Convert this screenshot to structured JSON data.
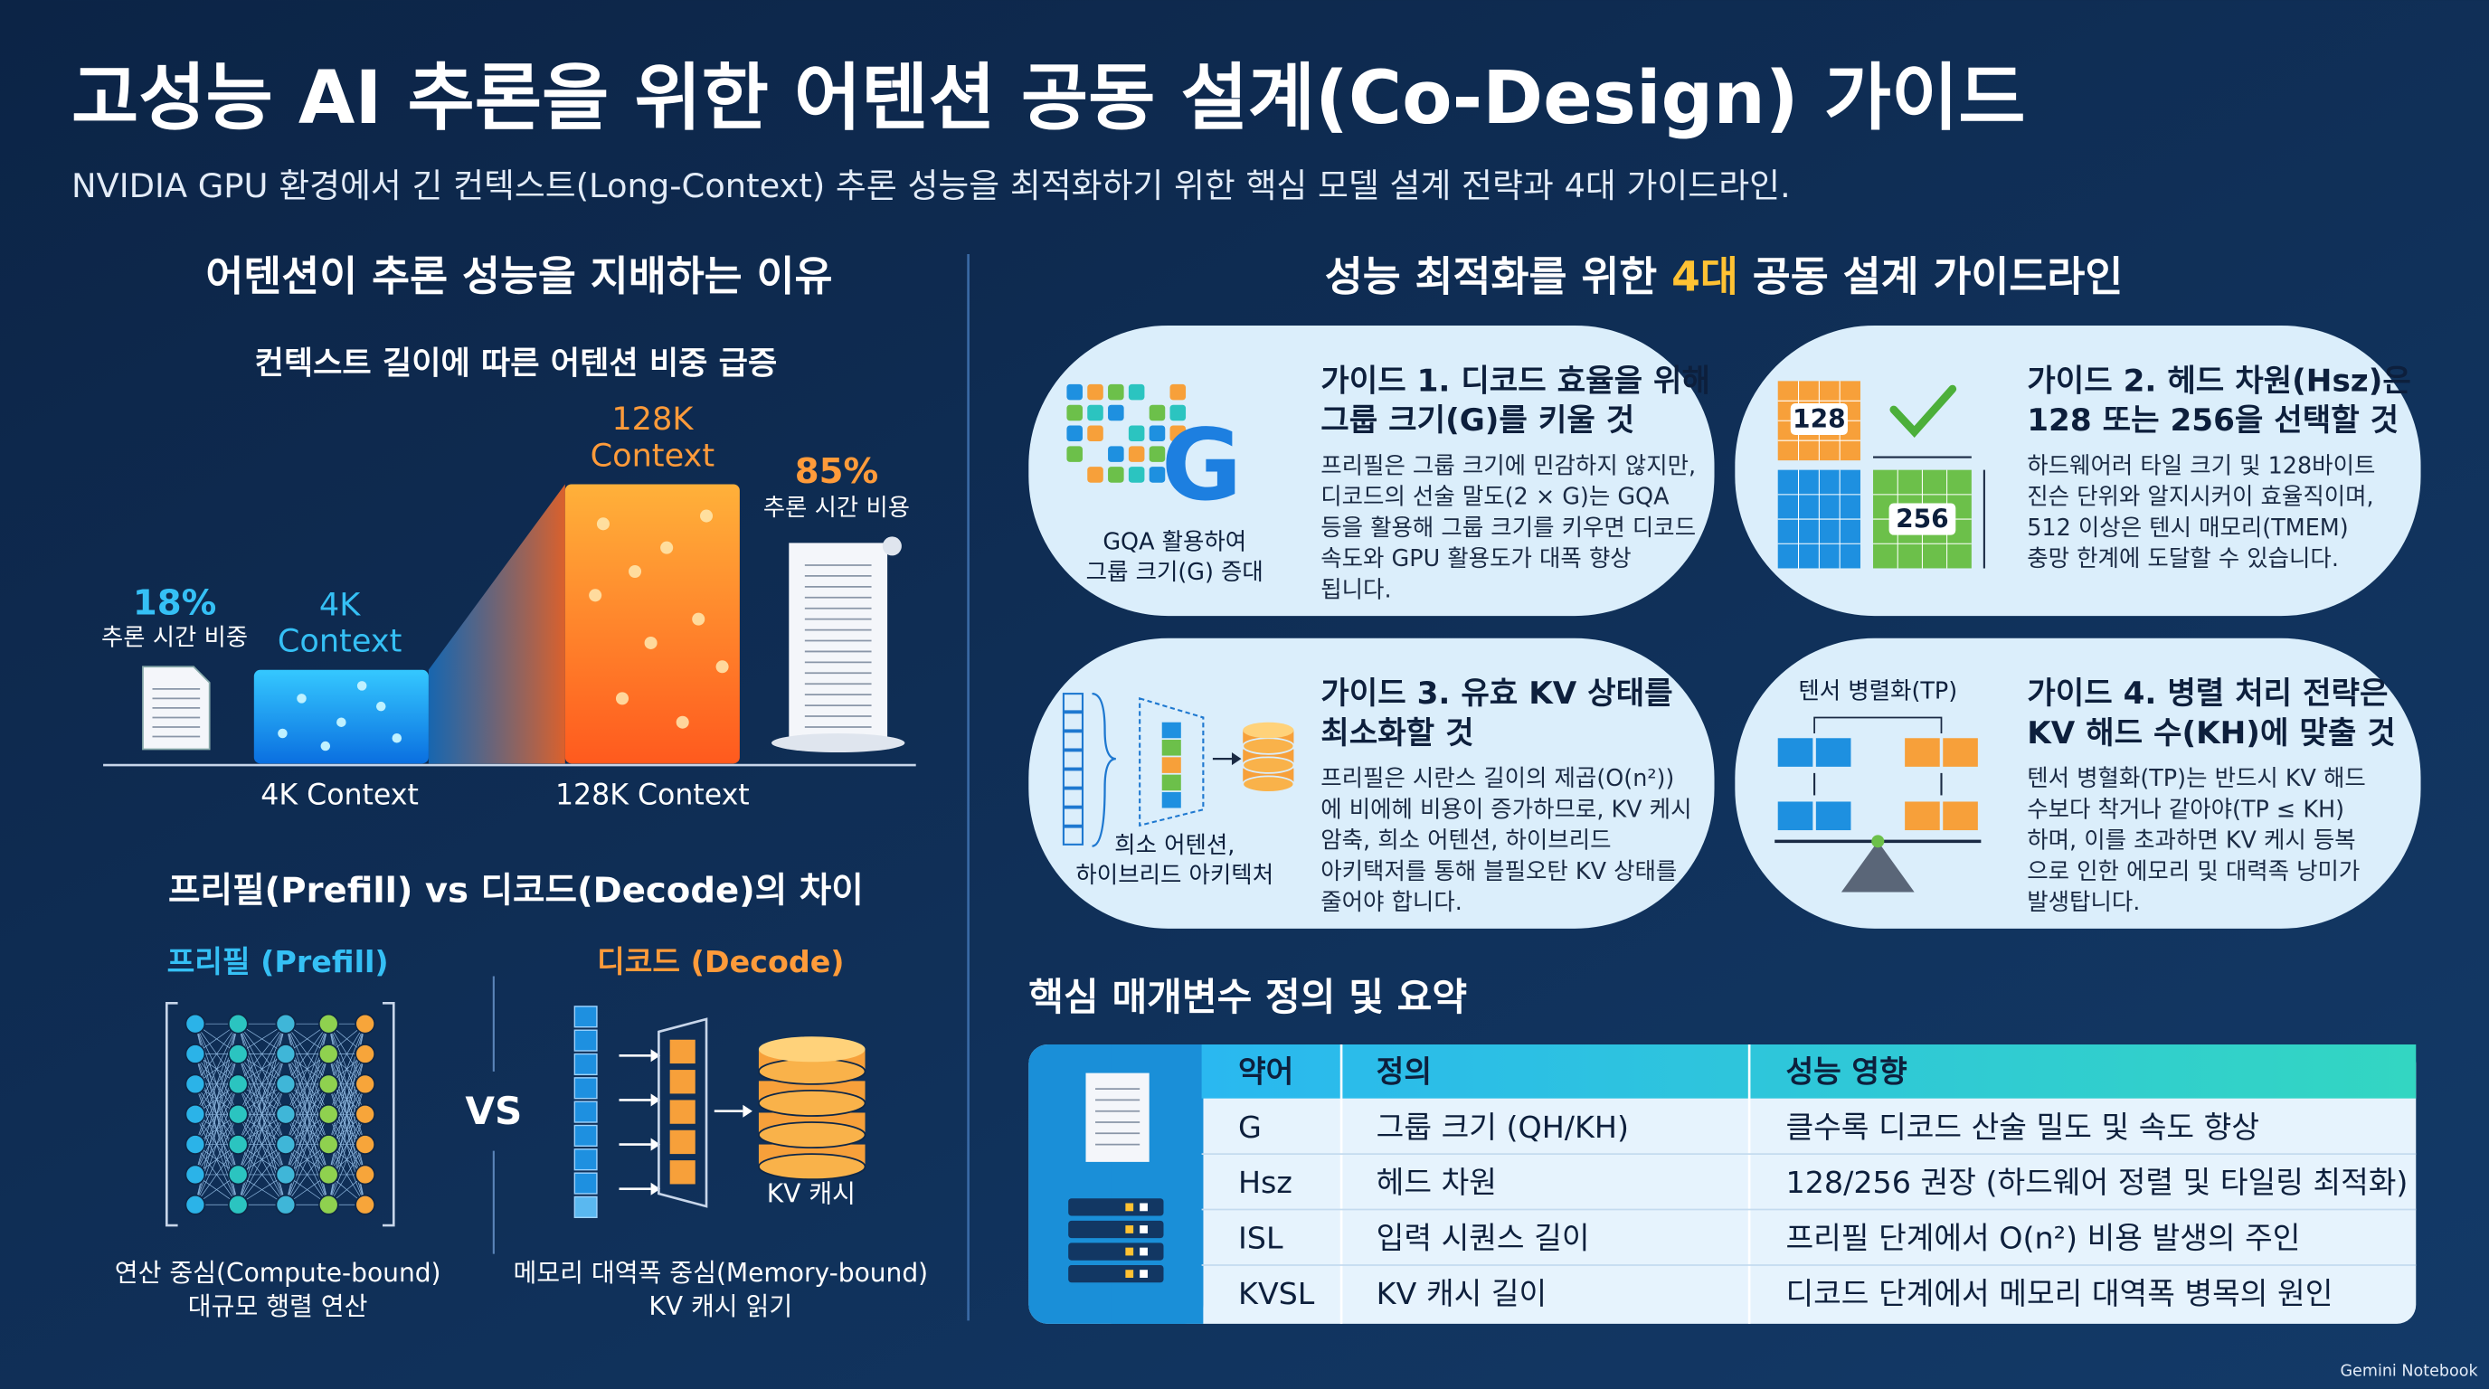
{
  "header": {
    "title": "고성능 AI 추론을 위한 어텐션 공동 설계(Co-Design) 가이드",
    "subtitle": "NVIDIA GPU 환경에서 긴 컨텍스트(Long-Context) 추론 성능을 최적화하기 위한 핵심 모델 설계 전략과 4대 가이드라인."
  },
  "left": {
    "heading": "어텐션이 추론 성능을 지배하는 이유",
    "context": {
      "title": "컨텍스트 길이에 따른 어텐션 비중 급증",
      "short": {
        "pct": "18%",
        "pct_label": "추론 시간 비중",
        "top_label": [
          "4K",
          "Context"
        ],
        "axis_label": "4K Context"
      },
      "long": {
        "pct": "85%",
        "pct_label": "추론 시간 비용",
        "top_label": [
          "128K",
          "Context"
        ],
        "axis_label": "128K Context"
      }
    },
    "compare": {
      "title": "프리필(Prefill) vs 디코드(Decode)의 차이",
      "vs": "VS",
      "prefill": {
        "title": "프리필 (Prefill)",
        "caption": [
          "연산 중심(Compute-bound)",
          "대규모 행렬 연산"
        ]
      },
      "decode": {
        "title": "디코드 (Decode)",
        "cache": "KV 캐시",
        "caption": [
          "메모리 대역폭 중심(Memory-bound)",
          "KV 캐시 읽기"
        ]
      }
    }
  },
  "right": {
    "heading": [
      "성능 최적화를 위한 ",
      "4대",
      " 공동 설계 가이드라인"
    ],
    "guides": [
      {
        "title": [
          "가이드 1. 디코드 효율을 위해",
          "그룹 크기(G)를 키울 것"
        ],
        "body": [
          "프리필은 그룹 크기에 민감하지 않지만,",
          "디코드의 선술 말도(2 × G)는 GQA",
          "등을 활용해 그룹 크기를 키우면 디코드",
          "속도와 GPU 활용도가 대폭 향상",
          "됩니다."
        ],
        "icon": [
          "G"
        ],
        "caption": [
          "GQA 활용하여",
          "그룹 크기(G) 증대"
        ]
      },
      {
        "title": [
          "가이드 2. 헤드 차원(Hsz)은",
          "128 또는 256을 선택할 것"
        ],
        "body": [
          "하드웨어러 타일 크기 및 128바이트",
          "진슨 단위와 알지시커이 효율직이며,",
          "512 이상은 텐시 매모리(TMEM)",
          "충망 한계에 도달할 수 있습니다."
        ],
        "icon": [
          "128",
          "256"
        ]
      },
      {
        "title": [
          "가이드 3. 유효 KV 상태를",
          "최소화할 것"
        ],
        "body": [
          "프리필은 시란스 길이의 제곱(O(n²))",
          "에 비에헤 비용이 증가하므로, KV 케시",
          "암축, 희소 어텐션, 하이브리드",
          "아키택저를 통해 블필오탄 KV 상태를",
          "줄어야 합니다."
        ],
        "caption": [
          "희소 어텐션,",
          "하이브리드 아키텍처"
        ]
      },
      {
        "title": [
          "가이드 4. 병렬 처리 전략은",
          "KV 해드 수(KH)에 맞출 것"
        ],
        "body": [
          "텐서 병혈화(TP)는 반드시 KV 해드",
          "수보다 착거나 같아야(TP ≤ KH)",
          "하며, 이를 초과하면 KV 케시 등복",
          "으로 인한 에모리 및 대력족 낭미가",
          "발생탑니다."
        ],
        "icon": [
          "텐서 병렬화(TP)"
        ]
      }
    ]
  },
  "table": {
    "heading": "핵심 매개변수 정의 및 요약",
    "columns": [
      "약어",
      "정의",
      "성능 영향"
    ],
    "rows": [
      [
        "G",
        "그룹 크기 (QH/KH)",
        "클수록 디코드 산술 밀도 및 속도 향상"
      ],
      [
        "Hsz",
        "헤드 차원",
        "128/256 권장 (하드웨어 정렬 및 타일링 최적화)"
      ],
      [
        "ISL",
        "입력 시퀀스 길이",
        "프리필 단계에서 O(n²) 비용 발생의 주인"
      ],
      [
        "KVSL",
        "KV 캐시 길이",
        "디코드 단계에서 메모리 대역폭 병목의 원인"
      ]
    ]
  },
  "footer": "Gemini Notebook"
}
